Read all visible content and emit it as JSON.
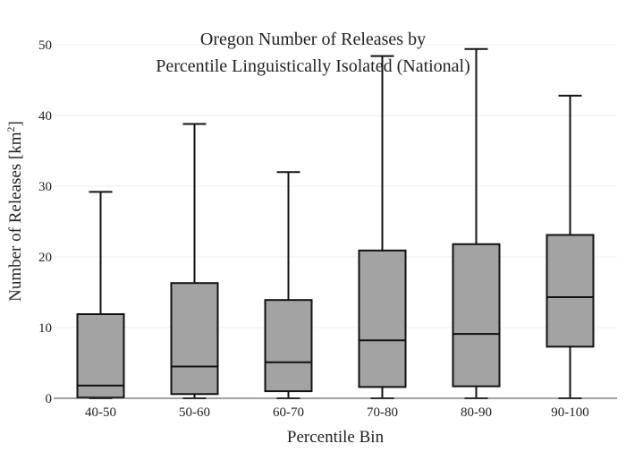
{
  "chart_data": {
    "type": "box",
    "title_lines": [
      "Oregon Number of Releases by",
      "Percentile Linguistically Isolated (National)"
    ],
    "xlabel": "Percentile Bin",
    "ylabel": "Number of Releases  [km",
    "ylabel_sup": "2",
    "ylabel_close": "]",
    "ylim": [
      0,
      50
    ],
    "yticks": [
      0,
      10,
      20,
      30,
      40,
      50
    ],
    "grid": true,
    "box_color": "#a3a3a3",
    "line_color": "#111111",
    "categories": [
      "40-50",
      "50-60",
      "60-70",
      "70-80",
      "80-90",
      "90-100"
    ],
    "boxes": [
      {
        "category": "40-50",
        "min": 0,
        "q1": 0.1,
        "median": 1.8,
        "q3": 11.9,
        "max": 29.2
      },
      {
        "category": "50-60",
        "min": 0,
        "q1": 0.6,
        "median": 4.5,
        "q3": 16.3,
        "max": 38.8
      },
      {
        "category": "60-70",
        "min": 0,
        "q1": 1.0,
        "median": 5.1,
        "q3": 13.9,
        "max": 32.0
      },
      {
        "category": "70-80",
        "min": 0,
        "q1": 1.6,
        "median": 8.2,
        "q3": 20.9,
        "max": 48.4
      },
      {
        "category": "80-90",
        "min": 0,
        "q1": 1.7,
        "median": 9.1,
        "q3": 21.8,
        "max": 49.4
      },
      {
        "category": "90-100",
        "min": 0,
        "q1": 7.3,
        "median": 14.3,
        "q3": 23.1,
        "max": 42.8
      }
    ]
  }
}
